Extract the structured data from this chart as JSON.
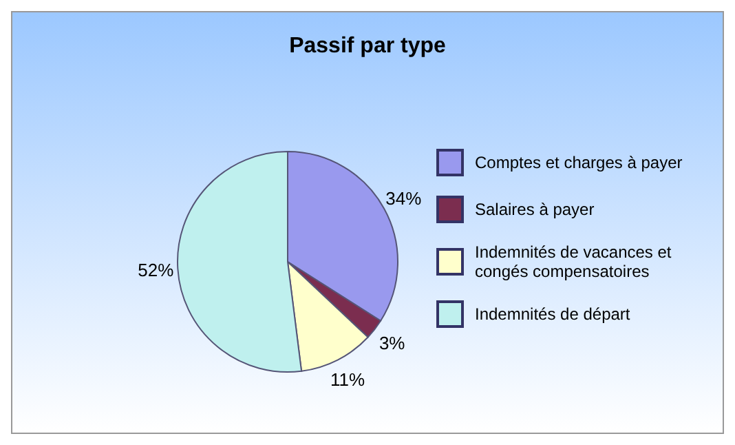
{
  "chart_data": {
    "type": "pie",
    "title": "Passif par type",
    "categories": [
      "Comptes et charges à payer",
      "Salaires à payer",
      "Indemnités de vacances et congés compensatoires",
      "Indemnités de départ"
    ],
    "values": [
      34,
      3,
      11,
      52
    ],
    "colors": [
      "#9999ee",
      "#7b2d4f",
      "#ffffcc",
      "#bff0ee"
    ],
    "value_labels": [
      "34%",
      "3%",
      "11%",
      "52%"
    ],
    "legend": "right"
  }
}
